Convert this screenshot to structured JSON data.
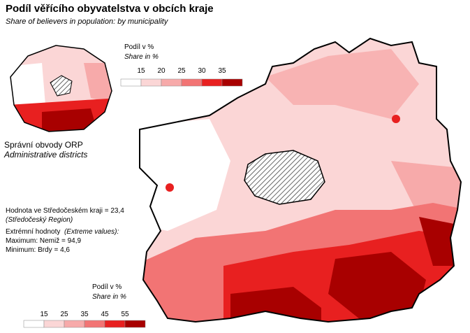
{
  "header": {
    "title": "Podíl věřícího obyvatelstva v obcích kraje",
    "subtitle": "Share of believers in population: by municipality"
  },
  "legends": [
    {
      "title": "Podíl v %",
      "subtitle": "Share in %",
      "breaks": [
        15,
        20,
        25,
        30,
        35
      ],
      "colors": [
        "#ffffff",
        "#fbd6d6",
        "#f7aaaa",
        "#f27474",
        "#e82020",
        "#a80000"
      ]
    },
    {
      "title": "Podíl v %",
      "subtitle": "Share in %",
      "breaks": [
        15,
        25,
        35,
        45,
        55
      ],
      "colors": [
        "#ffffff",
        "#fbd6d6",
        "#f7aaaa",
        "#f27474",
        "#e82020",
        "#a80000"
      ]
    }
  ],
  "inset": {
    "title": "Správní obvody  ORP",
    "subtitle": "Administrative districts"
  },
  "notes": {
    "region_value": "Hodnota ve Středočeském kraji = 23,4",
    "region_name": "(Středočeský Region)",
    "extremes_title": "Extrémní hodnoty",
    "extremes_subtitle": "(Extreme values):",
    "maximum": "Maximum: Nemiž = 94,9",
    "minimum": "Minimum: Brdy = 4,6"
  }
}
